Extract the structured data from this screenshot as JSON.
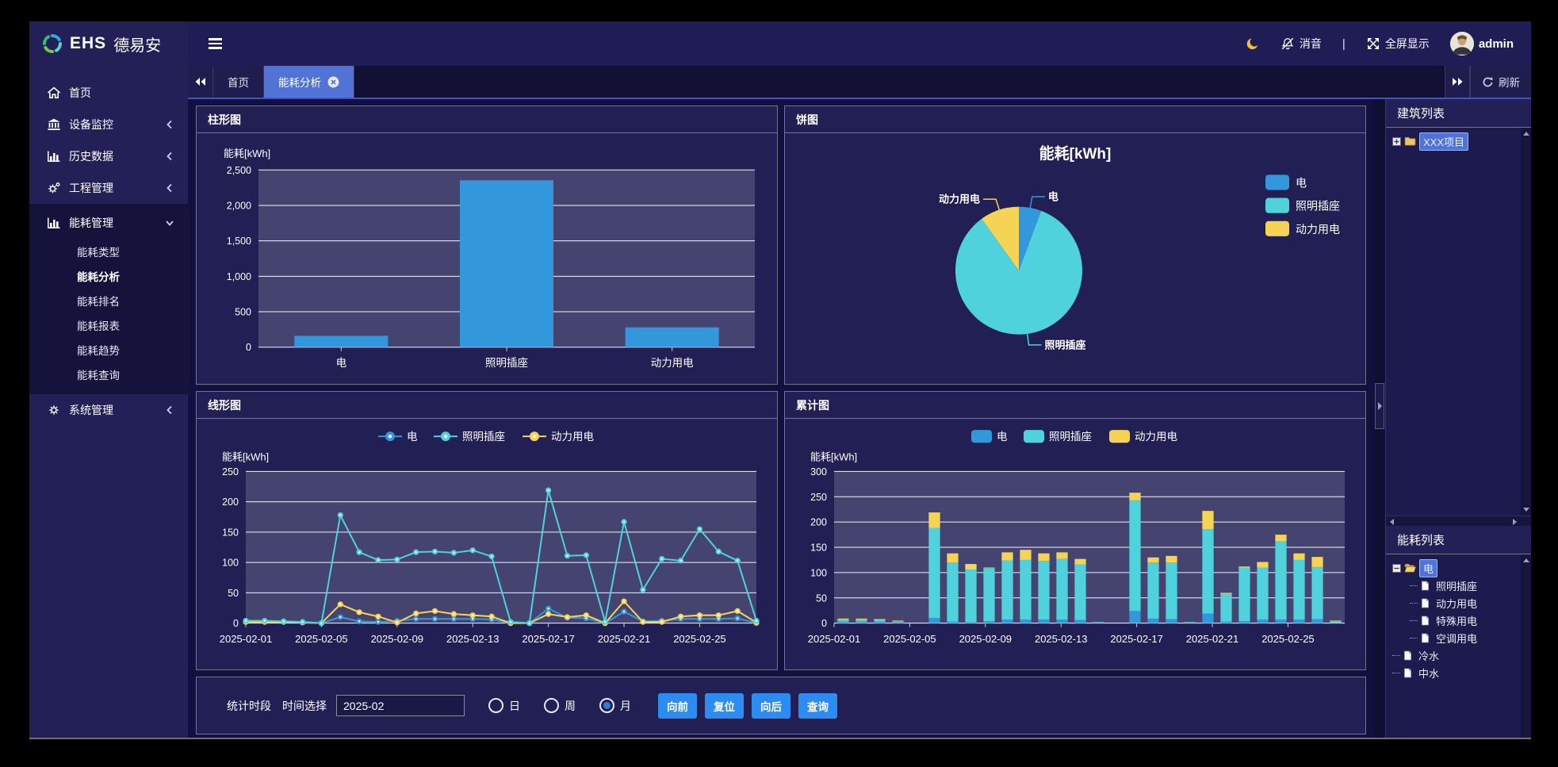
{
  "header": {
    "brand": "EHS",
    "brand_cn": "德易安",
    "mute_label": "消音",
    "divider": "|",
    "fullscreen_label": "全屏显示",
    "username": "admin"
  },
  "sidebar": {
    "items": [
      {
        "name": "home",
        "label": "首页",
        "icon": "home-icon",
        "chevron": null
      },
      {
        "name": "device-monitor",
        "label": "设备监控",
        "icon": "bank-icon",
        "chevron": "left"
      },
      {
        "name": "history-data",
        "label": "历史数据",
        "icon": "bar-chart-icon",
        "chevron": "left"
      },
      {
        "name": "project-manage",
        "label": "工程管理",
        "icon": "gears-icon",
        "chevron": "left"
      },
      {
        "name": "energy-manage",
        "label": "能耗管理",
        "icon": "bar-chart-icon",
        "chevron": "down",
        "expanded": true,
        "children": [
          {
            "name": "energy-type",
            "label": "能耗类型",
            "active": false
          },
          {
            "name": "energy-analysis",
            "label": "能耗分析",
            "active": true
          },
          {
            "name": "energy-ranking",
            "label": "能耗排名",
            "active": false
          },
          {
            "name": "energy-report",
            "label": "能耗报表",
            "active": false
          },
          {
            "name": "energy-trend",
            "label": "能耗趋势",
            "active": false
          },
          {
            "name": "energy-query",
            "label": "能耗查询",
            "active": false
          }
        ]
      },
      {
        "name": "system-manage",
        "label": "系统管理",
        "icon": "gear-icon",
        "chevron": "left"
      }
    ]
  },
  "tabs": {
    "items": [
      {
        "name": "home",
        "label": "首页",
        "active": false,
        "closable": false
      },
      {
        "name": "energy-analysis",
        "label": "能耗分析",
        "active": true,
        "closable": true
      }
    ],
    "refresh_label": "刷新"
  },
  "panels": {
    "bar_title": "柱形图",
    "pie_title": "饼图",
    "line_title": "线形图",
    "stack_title": "累计图"
  },
  "right_panel": {
    "building_title": "建筑列表",
    "building_tree": [
      {
        "label": "XXX项目",
        "icon": "folder-icon",
        "expander": "plus",
        "selected": true,
        "depth": 0
      }
    ],
    "energy_title": "能耗列表",
    "energy_tree": [
      {
        "label": "电",
        "icon": "folder-open-icon",
        "expander": "minus",
        "selected": true,
        "depth": 0
      },
      {
        "label": "照明插座",
        "icon": "file-icon",
        "expander": null,
        "selected": false,
        "depth": 1
      },
      {
        "label": "动力用电",
        "icon": "file-icon",
        "expander": null,
        "selected": false,
        "depth": 1
      },
      {
        "label": "特殊用电",
        "icon": "file-icon",
        "expander": null,
        "selected": false,
        "depth": 1
      },
      {
        "label": "空调用电",
        "icon": "file-icon",
        "expander": null,
        "selected": false,
        "depth": 1
      },
      {
        "label": "冷水",
        "icon": "file-icon",
        "expander": null,
        "selected": false,
        "depth": 0
      },
      {
        "label": "中水",
        "icon": "file-icon",
        "expander": null,
        "selected": false,
        "depth": 0
      }
    ]
  },
  "footer": {
    "period_label": "统计时段",
    "time_label": "时间选择",
    "time_value": "2025-02",
    "radios": [
      {
        "label": "日",
        "checked": false
      },
      {
        "label": "周",
        "checked": false
      },
      {
        "label": "月",
        "checked": true
      }
    ],
    "buttons": [
      {
        "name": "forward-button",
        "label": "向前"
      },
      {
        "name": "reset-button",
        "label": "复位"
      },
      {
        "name": "backward-button",
        "label": "向后"
      },
      {
        "name": "query-button",
        "label": "查询"
      }
    ]
  },
  "colors": {
    "electric": "#3398db",
    "lighting": "#4fd2dc",
    "power": "#f5d354",
    "active_tab": "#5273d6",
    "button_blue": "#2d8cf0",
    "plot_bg": "rgba(255,255,255,0.16)"
  },
  "chart_data": [
    {
      "id": "bar",
      "type": "bar",
      "axis_label": "能耗[kWh]",
      "categories": [
        "电",
        "照明插座",
        "动力用电"
      ],
      "values": [
        160,
        2355,
        279
      ],
      "ylim": [
        0,
        2500
      ],
      "ytick": 500,
      "grid": true
    },
    {
      "id": "pie",
      "type": "pie",
      "title": "能耗[kWh]",
      "labels": [
        "电",
        "照明插座",
        "动力用电"
      ],
      "values": [
        160,
        2355,
        279
      ],
      "color_keys": [
        "electric",
        "lighting",
        "power"
      ],
      "legend_position": "right"
    },
    {
      "id": "line",
      "type": "line",
      "axis_label": "能耗[kWh]",
      "ylim": [
        0,
        250
      ],
      "ytick": 50,
      "x_label_every": 4,
      "grid": true,
      "legend_position": "top",
      "x": [
        "2025-02-01",
        "2025-02-02",
        "2025-02-03",
        "2025-02-04",
        "2025-02-05",
        "2025-02-06",
        "2025-02-07",
        "2025-02-08",
        "2025-02-09",
        "2025-02-10",
        "2025-02-11",
        "2025-02-12",
        "2025-02-13",
        "2025-02-14",
        "2025-02-15",
        "2025-02-16",
        "2025-02-17",
        "2025-02-18",
        "2025-02-19",
        "2025-02-20",
        "2025-02-21",
        "2025-02-22",
        "2025-02-23",
        "2025-02-24",
        "2025-02-25",
        "2025-02-26",
        "2025-02-27",
        "2025-02-28"
      ],
      "series": [
        {
          "name": "电",
          "color_key": "electric",
          "values": [
            3,
            3,
            3,
            2,
            0,
            10,
            3,
            2,
            4,
            7,
            7,
            7,
            7,
            6,
            0,
            0,
            24,
            9,
            8,
            0,
            19,
            3,
            4,
            7,
            7,
            7,
            8,
            0
          ]
        },
        {
          "name": "照明插座",
          "color_key": "lighting",
          "values": [
            4,
            4,
            3,
            2,
            0,
            178,
            117,
            104,
            105,
            117,
            118,
            116,
            120,
            110,
            2,
            0,
            219,
            111,
            112,
            2,
            167,
            55,
            106,
            103,
            155,
            118,
            103,
            4
          ]
        },
        {
          "name": "动力用电",
          "color_key": "power",
          "values": [
            2,
            2,
            2,
            1,
            0,
            31,
            18,
            11,
            1,
            16,
            20,
            15,
            13,
            11,
            0,
            0,
            15,
            10,
            13,
            0,
            36,
            2,
            2,
            11,
            13,
            13,
            20,
            1
          ]
        }
      ]
    },
    {
      "id": "stack",
      "type": "bar-stacked",
      "axis_label": "能耗[kWh]",
      "ylim": [
        0,
        300
      ],
      "ytick": 50,
      "x_label_every": 4,
      "grid": true,
      "legend_position": "top",
      "x": [
        "2025-02-01",
        "2025-02-02",
        "2025-02-03",
        "2025-02-04",
        "2025-02-05",
        "2025-02-06",
        "2025-02-07",
        "2025-02-08",
        "2025-02-09",
        "2025-02-10",
        "2025-02-11",
        "2025-02-12",
        "2025-02-13",
        "2025-02-14",
        "2025-02-15",
        "2025-02-16",
        "2025-02-17",
        "2025-02-18",
        "2025-02-19",
        "2025-02-20",
        "2025-02-21",
        "2025-02-22",
        "2025-02-23",
        "2025-02-24",
        "2025-02-25",
        "2025-02-26",
        "2025-02-27",
        "2025-02-28"
      ],
      "series": [
        {
          "name": "电",
          "color_key": "electric",
          "values": [
            3,
            3,
            3,
            2,
            0,
            10,
            3,
            2,
            4,
            7,
            7,
            7,
            7,
            6,
            0,
            0,
            24,
            9,
            8,
            0,
            19,
            3,
            4,
            7,
            7,
            7,
            8,
            0
          ]
        },
        {
          "name": "照明插座",
          "color_key": "lighting",
          "values": [
            4,
            4,
            3,
            2,
            0,
            178,
            117,
            104,
            105,
            117,
            118,
            116,
            120,
            110,
            2,
            0,
            219,
            111,
            112,
            2,
            167,
            55,
            106,
            103,
            155,
            118,
            103,
            4
          ]
        },
        {
          "name": "动力用电",
          "color_key": "power",
          "values": [
            2,
            2,
            2,
            1,
            0,
            31,
            18,
            11,
            1,
            16,
            20,
            15,
            13,
            11,
            0,
            0,
            15,
            10,
            13,
            0,
            36,
            2,
            2,
            11,
            13,
            13,
            20,
            1
          ]
        }
      ]
    }
  ]
}
